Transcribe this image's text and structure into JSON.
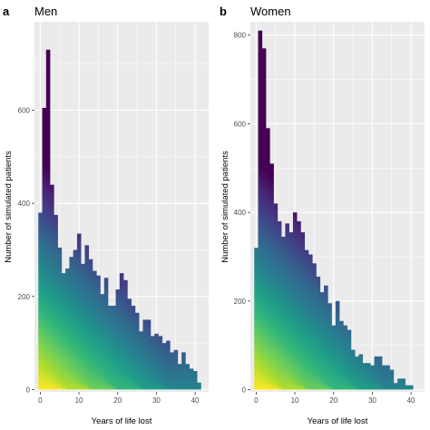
{
  "chart_data": [
    {
      "type": "bar",
      "panel": "a",
      "title": "Men",
      "xlabel": "Years of life lost",
      "ylabel": "Number of simulated patients",
      "xlim": [
        -1.5,
        43.5
      ],
      "ylim": [
        -5,
        790
      ],
      "xticks": [
        0,
        10,
        20,
        30,
        40
      ],
      "yticks": [
        0,
        200,
        400,
        600
      ],
      "grid": true,
      "stacked": true,
      "colormap": "viridis",
      "x": [
        0,
        1,
        2,
        3,
        4,
        5,
        6,
        7,
        8,
        9,
        10,
        11,
        12,
        13,
        14,
        15,
        16,
        17,
        18,
        19,
        20,
        21,
        22,
        23,
        24,
        25,
        26,
        27,
        28,
        29,
        30,
        31,
        32,
        33,
        34,
        35,
        36,
        37,
        38,
        39,
        40,
        41
      ],
      "values": [
        380,
        605,
        730,
        440,
        375,
        305,
        250,
        260,
        285,
        300,
        335,
        270,
        310,
        280,
        255,
        245,
        205,
        240,
        180,
        180,
        215,
        250,
        235,
        195,
        180,
        165,
        125,
        150,
        150,
        115,
        120,
        115,
        100,
        105,
        80,
        85,
        55,
        80,
        55,
        45,
        40,
        15
      ]
    },
    {
      "type": "bar",
      "panel": "b",
      "title": "Women",
      "xlabel": "Years of life lost",
      "ylabel": "Number of simulated patients",
      "xlim": [
        -1.5,
        43.5
      ],
      "ylim": [
        -5,
        830
      ],
      "xticks": [
        0,
        10,
        20,
        30,
        40
      ],
      "yticks": [
        0,
        200,
        400,
        600,
        800
      ],
      "grid": true,
      "stacked": true,
      "colormap": "viridis",
      "x": [
        0,
        1,
        2,
        3,
        4,
        5,
        6,
        7,
        8,
        9,
        10,
        11,
        12,
        13,
        14,
        15,
        16,
        17,
        18,
        19,
        20,
        21,
        22,
        23,
        24,
        25,
        26,
        27,
        28,
        29,
        30,
        31,
        32,
        33,
        34,
        35,
        36,
        37,
        38,
        39,
        40,
        41
      ],
      "values": [
        320,
        810,
        770,
        590,
        510,
        420,
        380,
        345,
        375,
        355,
        400,
        380,
        355,
        315,
        305,
        285,
        255,
        220,
        235,
        195,
        145,
        200,
        155,
        145,
        135,
        90,
        75,
        80,
        60,
        60,
        55,
        75,
        75,
        55,
        55,
        45,
        15,
        25,
        25,
        10,
        10,
        0
      ]
    }
  ],
  "colors": {
    "panel_background": "#ebebeb",
    "gridline": "#ffffff",
    "viridis": [
      "#fde725",
      "#b5de2b",
      "#6ece58",
      "#35b779",
      "#1f9e89",
      "#26828e",
      "#31688e",
      "#3e4989",
      "#482878",
      "#440154"
    ]
  }
}
